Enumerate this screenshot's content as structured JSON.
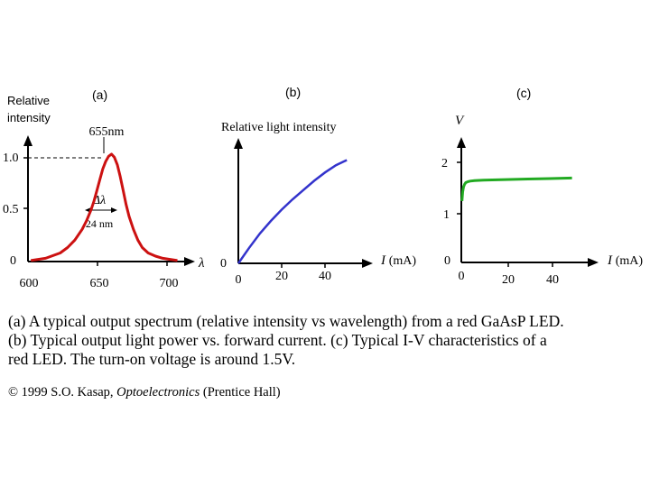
{
  "chart_data": [
    {
      "type": "line",
      "panel_label": "(a)",
      "ylabel": "Relative intensity",
      "xlabel": "λ",
      "x_ticks": [
        "600",
        "650",
        "700"
      ],
      "y_ticks": [
        "0",
        "0.5",
        "1.0"
      ],
      "xlim": [
        598,
        712
      ],
      "ylim": [
        0,
        1.15
      ],
      "annotations": {
        "peak": "655nm",
        "delta_symbol": "Δλ",
        "width": "24 nm"
      },
      "series": [
        {
          "color": "#cc1111",
          "x": [
            600,
            610,
            620,
            625,
            630,
            635,
            638,
            641,
            643,
            645,
            647,
            649,
            651,
            653,
            655,
            657,
            659,
            661,
            663,
            665,
            667,
            670,
            673,
            676,
            680,
            685,
            690,
            695,
            700
          ],
          "y": [
            0.01,
            0.03,
            0.08,
            0.13,
            0.2,
            0.3,
            0.38,
            0.48,
            0.56,
            0.66,
            0.76,
            0.86,
            0.93,
            0.98,
            1.0,
            0.97,
            0.9,
            0.79,
            0.66,
            0.53,
            0.42,
            0.3,
            0.2,
            0.13,
            0.08,
            0.05,
            0.03,
            0.02,
            0.01
          ]
        }
      ]
    },
    {
      "type": "line",
      "panel_label": "(b)",
      "ylabel": "Relative light intensity",
      "xlabel": "I (mA)",
      "x_ticks": [
        "0",
        "20",
        "40"
      ],
      "xlim": [
        0,
        62
      ],
      "ylim": [
        0,
        1.1
      ],
      "series": [
        {
          "color": "#3333cc",
          "x": [
            0,
            5,
            10,
            15,
            20,
            25,
            30,
            35,
            40,
            45,
            50
          ],
          "y": [
            0.0,
            0.15,
            0.29,
            0.41,
            0.52,
            0.62,
            0.71,
            0.8,
            0.88,
            0.95,
            1.0
          ]
        }
      ]
    },
    {
      "type": "line",
      "panel_label": "(c)",
      "ylabel": "V",
      "xlabel": "I (mA)",
      "x_ticks": [
        "0",
        "20",
        "40"
      ],
      "y_ticks": [
        "0",
        "1",
        "2"
      ],
      "xlim": [
        0,
        62
      ],
      "ylim": [
        0,
        2.45
      ],
      "series": [
        {
          "color": "#22aa22",
          "x": [
            0.3,
            0.6,
            1,
            1.5,
            2,
            3,
            4,
            6,
            10,
            20,
            30,
            40,
            50
          ],
          "y": [
            1.2,
            1.38,
            1.48,
            1.53,
            1.56,
            1.58,
            1.59,
            1.6,
            1.61,
            1.62,
            1.63,
            1.64,
            1.65
          ]
        }
      ]
    }
  ],
  "caption": {
    "line1": "(a) A typical output spectrum (relative intensity vs wavelength) from a red GaAsP LED.",
    "line2": "(b) Typical output light power vs. forward current. (c) Typical I-V characteristics of a",
    "line3": "red LED. The turn-on voltage is around 1.5V."
  },
  "copyright": {
    "prefix": "© 1999 S.O. Kasap, ",
    "book": "Optoelectronics",
    "suffix": " (Prentice Hall)"
  }
}
